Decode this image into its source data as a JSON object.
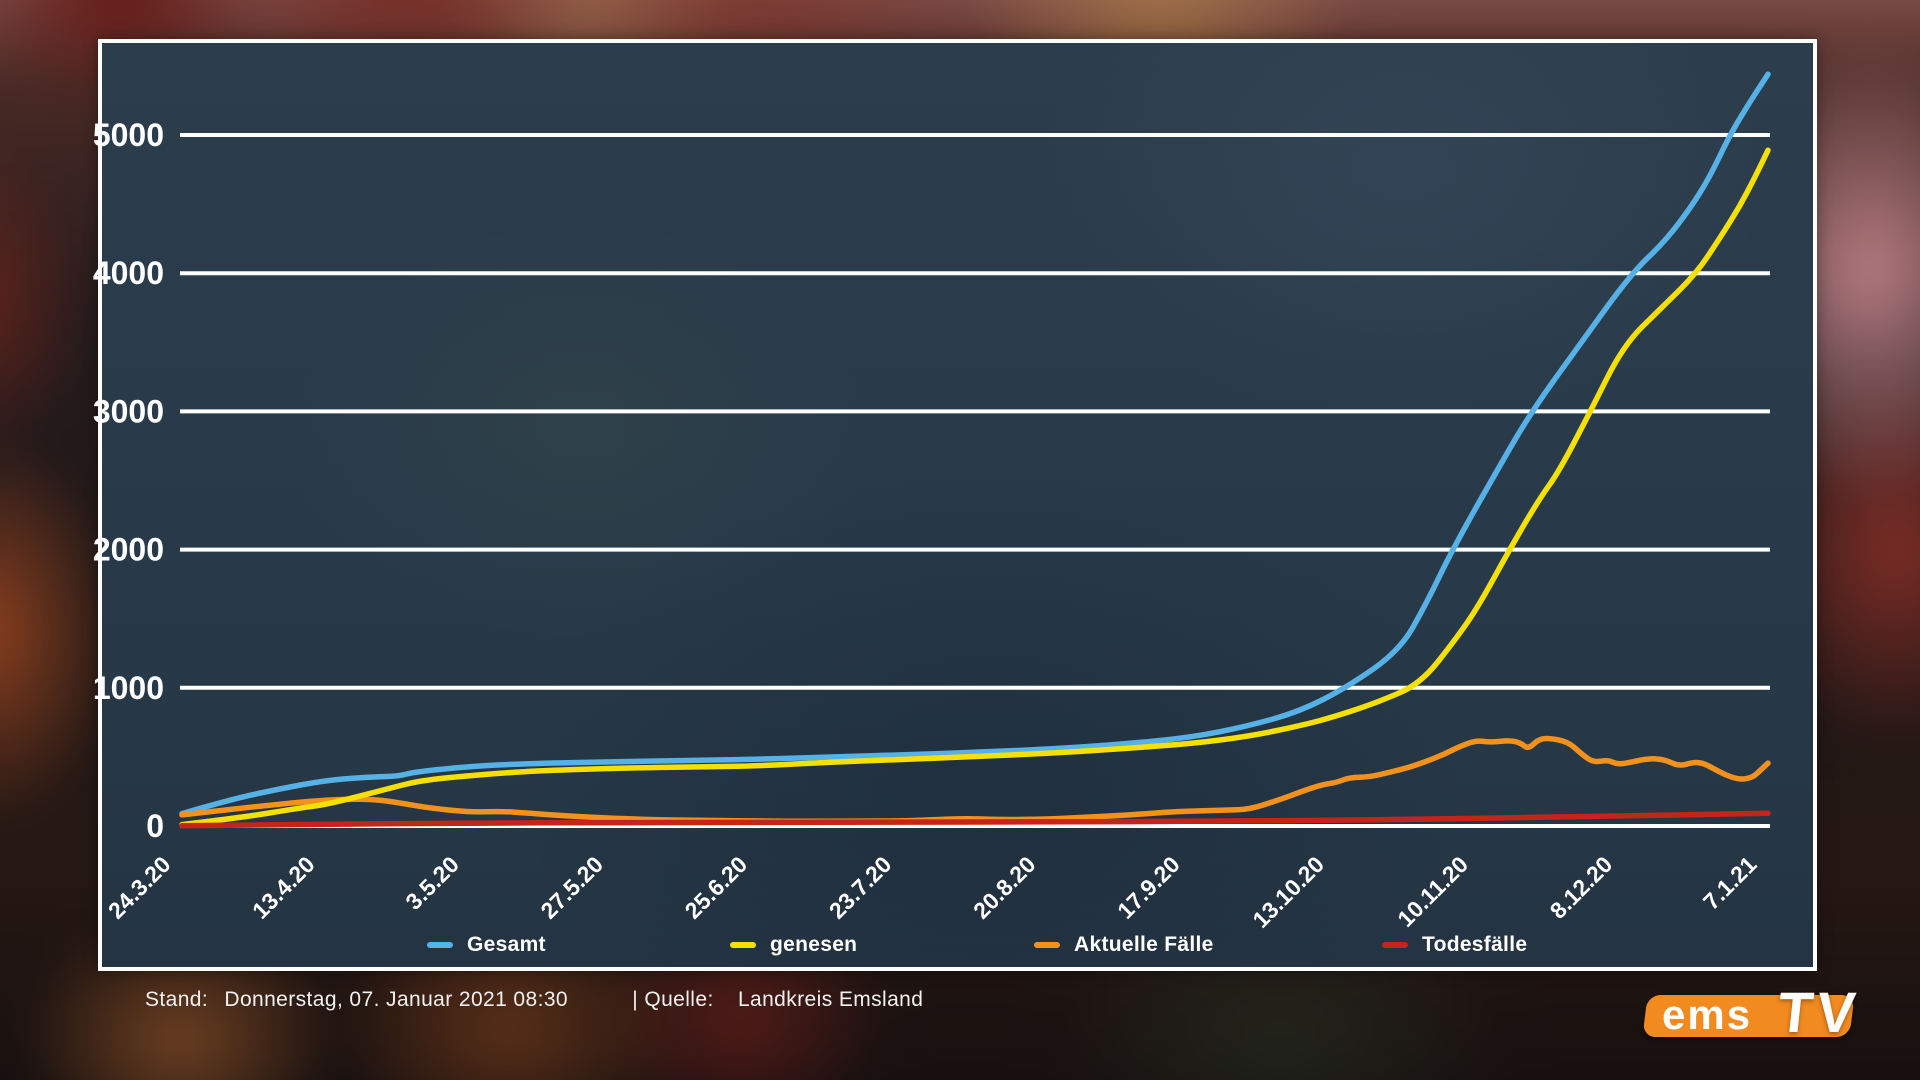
{
  "chart_data": {
    "type": "line",
    "title": "",
    "x_axis": {
      "type": "categorical-evenly-spaced-dates",
      "tick_labels": [
        "24.3.20",
        "13.4.20",
        "3.5.20",
        "27.5.20",
        "25.6.20",
        "23.7.20",
        "20.8.20",
        "17.9.20",
        "13.10.20",
        "10.11.20",
        "8.12.20",
        "7.1.21"
      ]
    },
    "y_axis": {
      "min": 0,
      "max": 5600,
      "gridlines": [
        0,
        1000,
        2000,
        3000,
        4000,
        5000
      ],
      "tick_labels": [
        "0",
        "1000",
        "2000",
        "3000",
        "4000",
        "5000"
      ]
    },
    "legend_order": [
      "Gesamt",
      "genesen",
      "Aktuelle Fälle",
      "Todesfälle"
    ],
    "series": [
      {
        "name": "Gesamt",
        "color": "#55b1e6",
        "points": [
          [
            0,
            90
          ],
          [
            0.03,
            190
          ],
          [
            0.062,
            270
          ],
          [
            0.091,
            330
          ],
          [
            0.112,
            350
          ],
          [
            0.128,
            358
          ],
          [
            0.137,
            362
          ],
          [
            0.147,
            392
          ],
          [
            0.182,
            432
          ],
          [
            0.219,
            452
          ],
          [
            0.273,
            465
          ],
          [
            0.327,
            475
          ],
          [
            0.364,
            483
          ],
          [
            0.409,
            500
          ],
          [
            0.455,
            515
          ],
          [
            0.5,
            533
          ],
          [
            0.545,
            555
          ],
          [
            0.591,
            590
          ],
          [
            0.636,
            640
          ],
          [
            0.673,
            725
          ],
          [
            0.705,
            830
          ],
          [
            0.734,
            1000
          ],
          [
            0.768,
            1270
          ],
          [
            0.785,
            1620
          ],
          [
            0.801,
            2000
          ],
          [
            0.831,
            2610
          ],
          [
            0.851,
            3000
          ],
          [
            0.881,
            3480
          ],
          [
            0.914,
            4000
          ],
          [
            0.935,
            4230
          ],
          [
            0.951,
            4470
          ],
          [
            0.963,
            4690
          ],
          [
            0.976,
            5000
          ],
          [
            0.988,
            5230
          ],
          [
            1,
            5440
          ]
        ]
      },
      {
        "name": "Aktuelle Fälle",
        "color": "#f2921d",
        "points": [
          [
            0,
            80
          ],
          [
            0.03,
            120
          ],
          [
            0.055,
            150
          ],
          [
            0.081,
            180
          ],
          [
            0.103,
            195
          ],
          [
            0.122,
            192
          ],
          [
            0.137,
            168
          ],
          [
            0.156,
            130
          ],
          [
            0.182,
            100
          ],
          [
            0.201,
            106
          ],
          [
            0.213,
            98
          ],
          [
            0.238,
            75
          ],
          [
            0.273,
            55
          ],
          [
            0.301,
            45
          ],
          [
            0.333,
            40
          ],
          [
            0.364,
            36
          ],
          [
            0.396,
            33
          ],
          [
            0.427,
            36
          ],
          [
            0.455,
            36
          ],
          [
            0.472,
            45
          ],
          [
            0.494,
            55
          ],
          [
            0.516,
            46
          ],
          [
            0.545,
            50
          ],
          [
            0.572,
            65
          ],
          [
            0.598,
            80
          ],
          [
            0.62,
            100
          ],
          [
            0.636,
            108
          ],
          [
            0.658,
            115
          ],
          [
            0.673,
            120
          ],
          [
            0.692,
            190
          ],
          [
            0.705,
            246
          ],
          [
            0.718,
            297
          ],
          [
            0.728,
            315
          ],
          [
            0.736,
            350
          ],
          [
            0.749,
            355
          ],
          [
            0.762,
            390
          ],
          [
            0.774,
            425
          ],
          [
            0.787,
            478
          ],
          [
            0.796,
            520
          ],
          [
            0.805,
            572
          ],
          [
            0.816,
            620
          ],
          [
            0.825,
            605
          ],
          [
            0.837,
            620
          ],
          [
            0.844,
            601
          ],
          [
            0.849,
            555
          ],
          [
            0.856,
            637
          ],
          [
            0.866,
            630
          ],
          [
            0.875,
            600
          ],
          [
            0.883,
            515
          ],
          [
            0.89,
            460
          ],
          [
            0.899,
            478
          ],
          [
            0.905,
            445
          ],
          [
            0.914,
            462
          ],
          [
            0.925,
            490
          ],
          [
            0.935,
            480
          ],
          [
            0.944,
            432
          ],
          [
            0.953,
            462
          ],
          [
            0.959,
            455
          ],
          [
            0.965,
            420
          ],
          [
            0.973,
            370
          ],
          [
            0.982,
            335
          ],
          [
            0.99,
            350
          ],
          [
            0.994,
            390
          ],
          [
            1,
            455
          ]
        ]
      },
      {
        "name": "genesen",
        "color": "#f5e003",
        "points": [
          [
            0,
            10
          ],
          [
            0.037,
            60
          ],
          [
            0.074,
            130
          ],
          [
            0.091,
            155
          ],
          [
            0.125,
            255
          ],
          [
            0.15,
            330
          ],
          [
            0.182,
            365
          ],
          [
            0.219,
            398
          ],
          [
            0.273,
            418
          ],
          [
            0.327,
            428
          ],
          [
            0.364,
            435
          ],
          [
            0.409,
            462
          ],
          [
            0.455,
            482
          ],
          [
            0.5,
            502
          ],
          [
            0.545,
            525
          ],
          [
            0.591,
            558
          ],
          [
            0.636,
            595
          ],
          [
            0.673,
            650
          ],
          [
            0.705,
            725
          ],
          [
            0.728,
            795
          ],
          [
            0.755,
            900
          ],
          [
            0.781,
            1030
          ],
          [
            0.803,
            1350
          ],
          [
            0.818,
            1600
          ],
          [
            0.837,
            2000
          ],
          [
            0.856,
            2370
          ],
          [
            0.868,
            2560
          ],
          [
            0.888,
            3000
          ],
          [
            0.909,
            3480
          ],
          [
            0.932,
            3740
          ],
          [
            0.955,
            4000
          ],
          [
            0.97,
            4260
          ],
          [
            0.982,
            4480
          ],
          [
            0.992,
            4700
          ],
          [
            1,
            4890
          ]
        ]
      },
      {
        "name": "Todesfälle",
        "color": "#c3251a",
        "points": [
          [
            0,
            2
          ],
          [
            0.091,
            14
          ],
          [
            0.182,
            21
          ],
          [
            0.273,
            25
          ],
          [
            0.364,
            26
          ],
          [
            0.455,
            28
          ],
          [
            0.545,
            30
          ],
          [
            0.636,
            34
          ],
          [
            0.728,
            41
          ],
          [
            0.781,
            50
          ],
          [
            0.818,
            56
          ],
          [
            0.863,
            64
          ],
          [
            0.909,
            73
          ],
          [
            0.957,
            83
          ],
          [
            1,
            92
          ]
        ]
      }
    ]
  },
  "footer": {
    "stand_label": "Stand:",
    "stand_value": "Donnerstag, 07. Januar 2021 08:30",
    "separator": "| Quelle:",
    "quelle_value": "Landkreis Emsland"
  },
  "logo": {
    "ems": "ems",
    "tv": "TV",
    "accent_color": "#f18a1f"
  }
}
